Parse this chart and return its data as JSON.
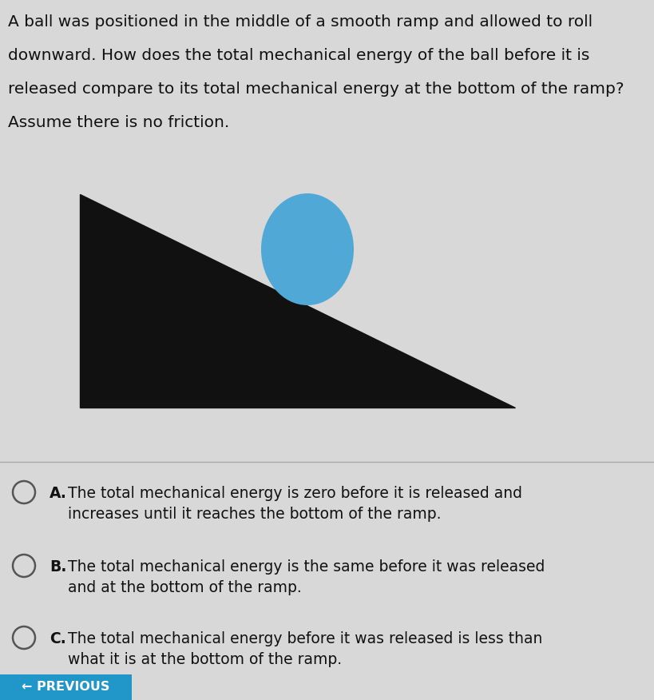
{
  "bg_color": "#d8d8d8",
  "question_lines": [
    "A ball was positioned in the middle of a smooth ramp and allowed to roll",
    "downward. How does the total mechanical energy of the ball before it is",
    "released compare to its total mechanical energy at the bottom of the ramp?",
    "Assume there is no friction."
  ],
  "ramp_color": "#111111",
  "ball_color": "#4fa8d5",
  "options": [
    {
      "letter": "A.",
      "lines": [
        "The total mechanical energy is zero before it is released and",
        "increases until it reaches the bottom of the ramp."
      ]
    },
    {
      "letter": "B.",
      "lines": [
        "The total mechanical energy is the same before it was released",
        "and at the bottom of the ramp."
      ]
    },
    {
      "letter": "C.",
      "lines": [
        "The total mechanical energy before it was released is less than",
        "what it is at the bottom of the ramp."
      ]
    }
  ],
  "prev_button_color": "#2196c8",
  "prev_button_text": "← PREVIOUS"
}
